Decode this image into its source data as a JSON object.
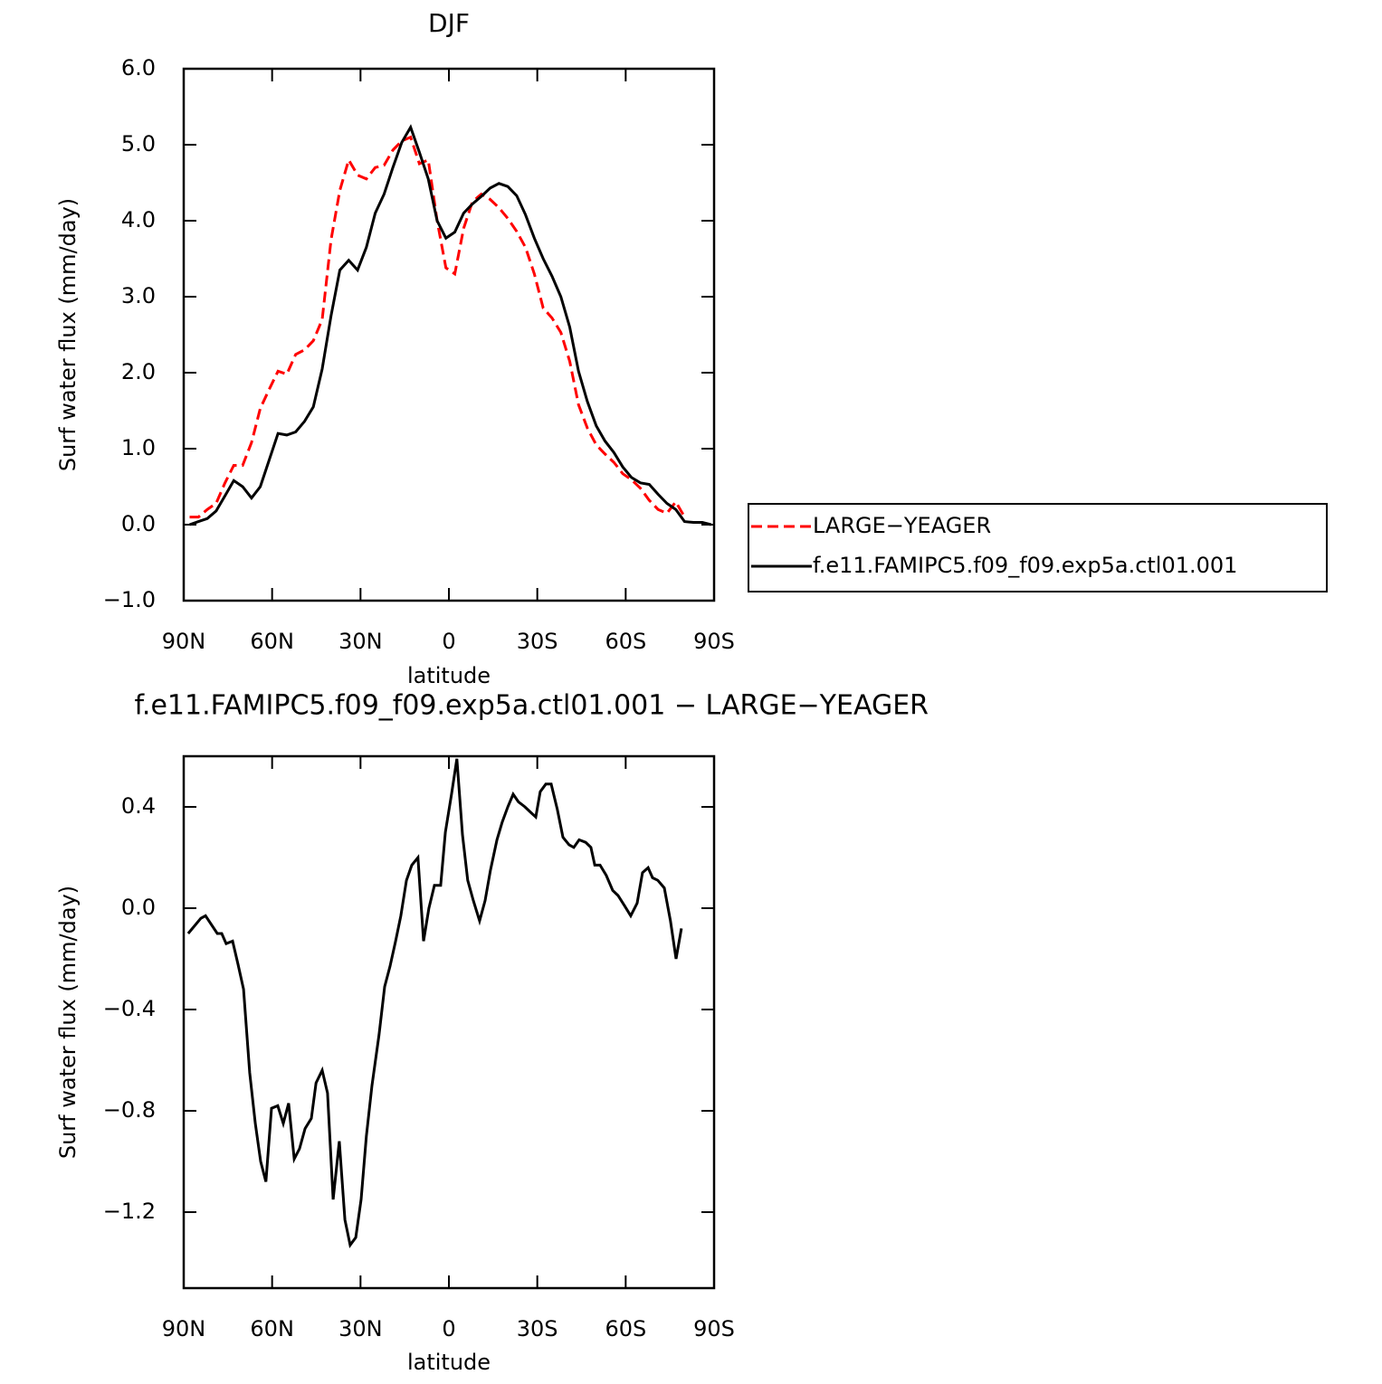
{
  "chart_data": [
    {
      "type": "line",
      "title": "DJF",
      "x_label": "latitude",
      "y_label": "Surf water flux (mm/day)",
      "xlim": [
        90,
        -90
      ],
      "ylim": [
        -1.0,
        6.0
      ],
      "xticks": [
        {
          "value": 90,
          "label": "90N"
        },
        {
          "value": 60,
          "label": "60N"
        },
        {
          "value": 30,
          "label": "30N"
        },
        0,
        {
          "value": -30,
          "label": "30S"
        },
        {
          "value": -60,
          "label": "60S"
        },
        {
          "value": -90,
          "label": "90S"
        }
      ],
      "yticks": [
        {
          "value": -1.0,
          "label": "−1.0"
        },
        {
          "value": 0,
          "label": "0.0"
        },
        {
          "value": 1.0,
          "label": "1.0"
        },
        {
          "value": 2.0,
          "label": "2.0"
        },
        {
          "value": 3.0,
          "label": "3.0"
        },
        {
          "value": 4.0,
          "label": "4.0"
        },
        {
          "value": 5.0,
          "label": "5.0"
        },
        {
          "value": 6.0,
          "label": "6.0"
        }
      ],
      "legend": "right",
      "x": [
        88,
        85,
        82,
        79,
        76,
        73,
        70,
        67,
        64,
        61,
        58,
        55,
        52,
        49,
        46,
        43,
        40,
        37,
        34,
        31,
        28,
        25,
        22,
        19,
        16,
        13,
        10,
        7,
        4,
        1,
        -2,
        -5,
        -8,
        -11,
        -14,
        -17,
        -20,
        -23,
        -26,
        -29,
        -32,
        -35,
        -38,
        -41,
        -44,
        -47,
        -50,
        -53,
        -56,
        -59,
        -62,
        -65,
        -68,
        -71,
        -74,
        -77,
        -80,
        -83,
        -86,
        -89
      ],
      "series": [
        {
          "name": "LARGE−YEAGER",
          "color": "#ff0000",
          "dashed": true,
          "values": [
            0.1,
            0.1,
            0.2,
            0.28,
            0.55,
            0.78,
            0.78,
            1.08,
            1.53,
            1.78,
            2.02,
            1.98,
            2.24,
            2.3,
            2.42,
            2.7,
            3.75,
            4.4,
            4.8,
            4.6,
            4.55,
            4.7,
            4.73,
            4.93,
            5.05,
            5.1,
            4.75,
            4.8,
            4.0,
            3.38,
            3.3,
            3.9,
            4.25,
            4.35,
            4.28,
            4.17,
            4.03,
            3.86,
            3.65,
            3.3,
            2.85,
            2.72,
            2.53,
            2.15,
            1.58,
            1.27,
            1.05,
            0.93,
            0.82,
            0.67,
            0.59,
            0.48,
            0.32,
            0.2,
            0.15,
            0.3,
            0.1,
            null,
            null,
            null
          ]
        },
        {
          "name": "f.e11.FAMIPC5.f09_f09.exp5a.ctl01.001",
          "color": "#000000",
          "dashed": false,
          "values": [
            0.0,
            0.04,
            0.08,
            0.18,
            0.38,
            0.58,
            0.5,
            0.35,
            0.5,
            0.85,
            1.2,
            1.18,
            1.22,
            1.36,
            1.55,
            2.05,
            2.75,
            3.35,
            3.48,
            3.35,
            3.65,
            4.1,
            4.35,
            4.7,
            5.03,
            5.23,
            4.9,
            4.55,
            4.0,
            3.77,
            3.85,
            4.1,
            4.22,
            4.32,
            4.43,
            4.49,
            4.45,
            4.33,
            4.08,
            3.77,
            3.5,
            3.27,
            3.0,
            2.6,
            2.02,
            1.62,
            1.3,
            1.1,
            0.95,
            0.76,
            0.62,
            0.55,
            0.53,
            0.4,
            0.28,
            0.2,
            0.04,
            0.03,
            0.03,
            0.0
          ]
        }
      ]
    },
    {
      "type": "line",
      "title": "f.e11.FAMIPC5.f09_f09.exp5a.ctl01.001 − LARGE−YEAGER",
      "x_label": "latitude",
      "y_label": "Surf water flux (mm/day)",
      "xlim": [
        90,
        -90
      ],
      "ylim": [
        -1.5,
        0.6
      ],
      "xticks": [
        {
          "value": 90,
          "label": "90N"
        },
        {
          "value": 60,
          "label": "60N"
        },
        {
          "value": 30,
          "label": "30N"
        },
        0,
        {
          "value": -30,
          "label": "30S"
        },
        {
          "value": -60,
          "label": "60S"
        },
        {
          "value": -90,
          "label": "90S"
        }
      ],
      "yticks": [
        {
          "value": -1.2,
          "label": "−1.2"
        },
        {
          "value": -0.8,
          "label": "−0.8"
        },
        {
          "value": -0.4,
          "label": "−0.4"
        },
        {
          "value": 0,
          "label": "0.0"
        },
        0.4
      ],
      "x": [
        88.5,
        84.2,
        82.6,
        78.6,
        77.1,
        75.6,
        73.4,
        71.6,
        69.7,
        67.6,
        65.7,
        63.9,
        62.1,
        60.2,
        58.1,
        56.2,
        54.4,
        52.5,
        50.7,
        48.8,
        46.7,
        45.1,
        43.0,
        41.2,
        39.3,
        37.2,
        35.3,
        33.5,
        31.6,
        29.8,
        28.0,
        26.1,
        23.7,
        21.8,
        20.0,
        18.1,
        16.3,
        14.4,
        12.6,
        10.5,
        8.6,
        6.8,
        4.9,
        2.8,
        1.2,
        -0.9,
        -2.7,
        -4.6,
        -6.4,
        -8.3,
        -10.4,
        -12.3,
        -14.1,
        -16.3,
        -18.1,
        -20.0,
        -21.8,
        -23.6,
        -25.8,
        -27.6,
        -29.5,
        -31.0,
        -32.9,
        -34.7,
        -36.8,
        -38.7,
        -40.8,
        -42.4,
        -44.2,
        -46.4,
        -48.2,
        -49.5,
        -51.3,
        -53.4,
        -55.6,
        -57.4,
        -59.6,
        -61.7,
        -63.9,
        -65.7,
        -67.6,
        -69.1,
        -70.9,
        -73.1,
        -75.2,
        -77.1,
        -78.9
      ],
      "series": [
        {
          "color": "#000000",
          "dashed": false,
          "values": [
            -0.1,
            -0.04,
            -0.03,
            -0.1,
            -0.1,
            -0.14,
            -0.13,
            -0.22,
            -0.32,
            -0.65,
            -0.85,
            -1.0,
            -1.08,
            -0.79,
            -0.78,
            -0.85,
            -0.77,
            -0.99,
            -0.95,
            -0.87,
            -0.83,
            -0.69,
            -0.64,
            -0.73,
            -1.15,
            -0.92,
            -1.23,
            -1.33,
            -1.3,
            -1.15,
            -0.9,
            -0.7,
            -0.5,
            -0.31,
            -0.23,
            -0.13,
            -0.03,
            0.11,
            0.17,
            0.2,
            -0.13,
            0.0,
            0.09,
            0.09,
            0.3,
            0.45,
            0.59,
            0.29,
            0.11,
            0.03,
            -0.05,
            0.03,
            0.15,
            0.27,
            0.34,
            0.4,
            0.45,
            0.42,
            0.4,
            0.38,
            0.36,
            0.46,
            0.49,
            0.49,
            0.39,
            0.28,
            0.25,
            0.24,
            0.27,
            0.26,
            0.24,
            0.17,
            0.17,
            0.13,
            0.07,
            0.05,
            0.01,
            -0.03,
            0.02,
            0.14,
            0.16,
            0.12,
            0.11,
            0.08,
            -0.05,
            -0.2,
            -0.08
          ]
        }
      ]
    }
  ]
}
